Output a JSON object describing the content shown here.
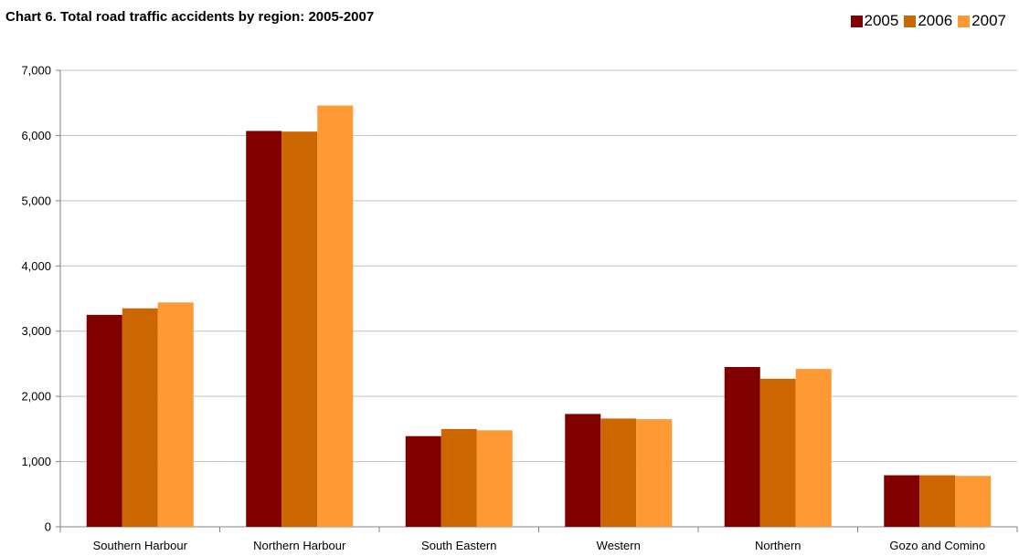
{
  "chart_data": {
    "type": "bar",
    "title": "Chart 6. Total road traffic accidents by region: 2005-2007",
    "categories": [
      "Southern Harbour",
      "Northern Harbour",
      "South Eastern",
      "Western",
      "Northern",
      "Gozo and Comino"
    ],
    "series": [
      {
        "name": "2005",
        "color": "#800000",
        "values": [
          3250,
          6070,
          1390,
          1730,
          2450,
          790
        ]
      },
      {
        "name": "2006",
        "color": "#CC6600",
        "values": [
          3350,
          6060,
          1500,
          1660,
          2270,
          790
        ]
      },
      {
        "name": "2007",
        "color": "#FF9933",
        "values": [
          3440,
          6460,
          1480,
          1650,
          2420,
          780
        ]
      }
    ],
    "xlabel": "",
    "ylabel": "",
    "ylim": [
      0,
      7000
    ],
    "yticks": [
      "0",
      "1,000",
      "2,000",
      "3,000",
      "4,000",
      "5,000",
      "6,000",
      "7,000"
    ],
    "grid": true,
    "legend_position": "top-right"
  }
}
